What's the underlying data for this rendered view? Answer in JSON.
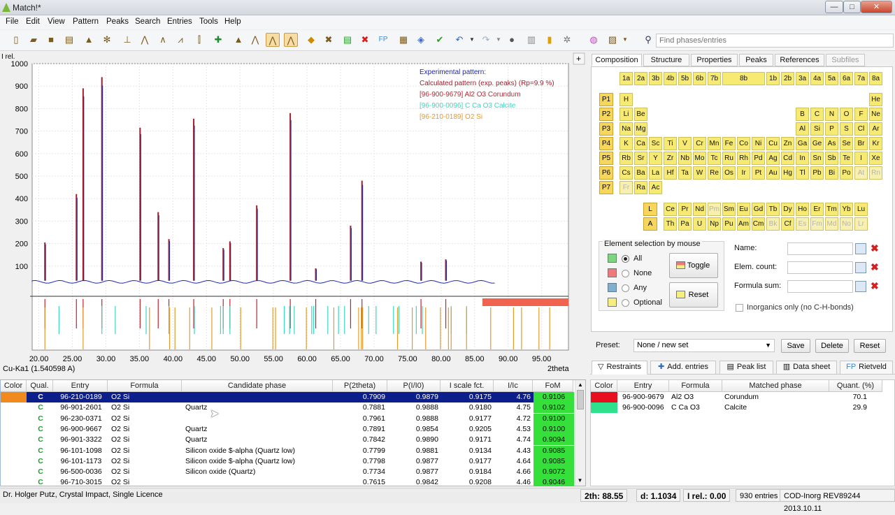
{
  "window": {
    "title": "Match!*",
    "minimize": "—",
    "maximize": "□",
    "close": "✕"
  },
  "menu": [
    "File",
    "Edit",
    "View",
    "Pattern",
    "Peaks",
    "Search",
    "Entries",
    "Tools",
    "Help"
  ],
  "search": {
    "placeholder": "Find phases/entries"
  },
  "plot": {
    "y_axis_label": "I rel.",
    "y_ticks": [
      "1000",
      "900",
      "800",
      "700",
      "600",
      "500",
      "400",
      "300",
      "200",
      "100"
    ],
    "x_ticks": [
      "20.00",
      "25.00",
      "30.00",
      "35.00",
      "40.00",
      "45.00",
      "50.00",
      "55.00",
      "60.00",
      "65.00",
      "70.00",
      "75.00",
      "80.00",
      "85.00",
      "90.00",
      "95.00"
    ],
    "x_axis_label": "2theta",
    "wavelength": "Cu-Ka1 (1.540598 A)",
    "legend": [
      {
        "text": "Experimental pattern:",
        "color": "#1f2aa8"
      },
      {
        "text": "Calculated pattern (exp. peaks) (Rp=9.9 %)",
        "color": "#a31d2c"
      },
      {
        "text": "[96-900-9679] Al2 O3  Corundum",
        "color": "#c8202e"
      },
      {
        "text": "[96-900-0096] C Ca O3  Calcite",
        "color": "#39d7c2"
      },
      {
        "text": "[96-210-0189] O2 Si",
        "color": "#e69a2a"
      }
    ]
  },
  "chart_data": {
    "type": "line",
    "x_range": [
      19,
      99
    ],
    "y_range": [
      0,
      1000
    ],
    "xlabel": "2theta",
    "ylabel": "I rel.",
    "peaks_experimental": [
      [
        20.9,
        205
      ],
      [
        25.6,
        420
      ],
      [
        26.6,
        890
      ],
      [
        29.4,
        940
      ],
      [
        35.1,
        715
      ],
      [
        37.8,
        340
      ],
      [
        39.4,
        220
      ],
      [
        43.1,
        755
      ],
      [
        47.5,
        180
      ],
      [
        48.5,
        210
      ],
      [
        52.5,
        370
      ],
      [
        57.5,
        780
      ],
      [
        61.3,
        90
      ],
      [
        66.5,
        280
      ],
      [
        68.2,
        480
      ],
      [
        77.0,
        120
      ],
      [
        80.7,
        130
      ]
    ],
    "series": [
      {
        "name": "Experimental pattern:",
        "color": "#1f2aa8"
      },
      {
        "name": "Calculated pattern (exp. peaks) (Rp=9.9 %)",
        "color": "#a31d2c"
      }
    ]
  },
  "tabs_right": [
    "Composition",
    "Structure",
    "Properties",
    "Peaks",
    "References",
    "Subfiles"
  ],
  "groups_row": [
    "1a",
    "2a",
    "3b",
    "4b",
    "5b",
    "6b",
    "7b",
    "8b",
    "1b",
    "2b",
    "3a",
    "4a",
    "5a",
    "6a",
    "7a",
    "8a"
  ],
  "periods": [
    "P1",
    "P2",
    "P3",
    "P4",
    "P5",
    "P6",
    "P7"
  ],
  "elements": {
    "p1": [
      "H",
      "He"
    ],
    "p2": [
      "Li",
      "Be",
      "B",
      "C",
      "N",
      "O",
      "F",
      "Ne"
    ],
    "p3": [
      "Na",
      "Mg",
      "Al",
      "Si",
      "P",
      "S",
      "Cl",
      "Ar"
    ],
    "p4": [
      "K",
      "Ca",
      "Sc",
      "Ti",
      "V",
      "Cr",
      "Mn",
      "Fe",
      "Co",
      "Ni",
      "Cu",
      "Zn",
      "Ga",
      "Ge",
      "As",
      "Se",
      "Br",
      "Kr"
    ],
    "p5": [
      "Rb",
      "Sr",
      "Y",
      "Zr",
      "Nb",
      "Mo",
      "Tc",
      "Ru",
      "Rh",
      "Pd",
      "Ag",
      "Cd",
      "In",
      "Sn",
      "Sb",
      "Te",
      "I",
      "Xe"
    ],
    "p6": [
      "Cs",
      "Ba",
      "La",
      "Hf",
      "Ta",
      "W",
      "Re",
      "Os",
      "Ir",
      "Pt",
      "Au",
      "Hg",
      "Tl",
      "Pb",
      "Bi",
      "Po",
      "At",
      "Rn"
    ],
    "p7": [
      "Fr",
      "Ra",
      "Ac"
    ],
    "lanth": [
      "Ce",
      "Pr",
      "Nd",
      "Pm",
      "Sm",
      "Eu",
      "Gd",
      "Tb",
      "Dy",
      "Ho",
      "Er",
      "Tm",
      "Yb",
      "Lu"
    ],
    "actin": [
      "Th",
      "Pa",
      "U",
      "Np",
      "Pu",
      "Am",
      "Cm",
      "Bk",
      "Cf",
      "Es",
      "Fm",
      "Md",
      "No",
      "Lr"
    ]
  },
  "series_buttons": [
    "L",
    "A"
  ],
  "elem_selection": {
    "title": "Element selection by mouse",
    "options": [
      "All",
      "None",
      "Any",
      "Optional"
    ],
    "toggle": "Toggle",
    "reset": "Reset"
  },
  "filters": {
    "name": "Name:",
    "elem_count": "Elem. count:",
    "formula_sum": "Formula sum:",
    "inorganics": "Inorganics only (no C-H-bonds)"
  },
  "preset": {
    "label": "Preset:",
    "value": "None / new set",
    "save": "Save",
    "delete": "Delete",
    "reset": "Reset"
  },
  "bottom_tabs": [
    "Restraints",
    "Add. entries",
    "Peak list",
    "Data sheet",
    "Rietveld"
  ],
  "candidates": {
    "headers": [
      "Color",
      "Qual.",
      "Entry",
      "Formula",
      "Candidate phase",
      "P(2theta)",
      "P(I/I0)",
      "I scale fct.",
      "I/Ic",
      "FoM"
    ],
    "rows": [
      [
        "C",
        "96-210-0189",
        "O2 Si",
        "",
        "0.7909",
        "0.9879",
        "0.9175",
        "4.76",
        "0.9106"
      ],
      [
        "C",
        "96-901-2601",
        "O2 Si",
        "Quartz",
        "0.7881",
        "0.9888",
        "0.9180",
        "4.75",
        "0.9102"
      ],
      [
        "C",
        "96-230-0371",
        "O2 Si",
        "",
        "0.7961",
        "0.9888",
        "0.9177",
        "4.72",
        "0.9100"
      ],
      [
        "C",
        "96-900-9667",
        "O2 Si",
        "Quartz",
        "0.7891",
        "0.9854",
        "0.9205",
        "4.53",
        "0.9100"
      ],
      [
        "C",
        "96-901-3322",
        "O2 Si",
        "Quartz",
        "0.7842",
        "0.9890",
        "0.9171",
        "4.74",
        "0.9094"
      ],
      [
        "C",
        "96-101-1098",
        "O2 Si",
        "Silicon oxide $-alpha (Quartz low)",
        "0.7799",
        "0.9881",
        "0.9134",
        "4.43",
        "0.9085"
      ],
      [
        "C",
        "96-101-1173",
        "O2 Si",
        "Silicon oxide $-alpha (Quartz low)",
        "0.7798",
        "0.9877",
        "0.9177",
        "4.64",
        "0.9085"
      ],
      [
        "C",
        "96-500-0036",
        "O2 Si",
        "Silicon oxide (Quartz)",
        "0.7734",
        "0.9877",
        "0.9184",
        "4.66",
        "0.9072"
      ],
      [
        "C",
        "96-710-3015",
        "O2 Si",
        "",
        "0.7615",
        "0.9842",
        "0.9208",
        "4.46",
        "0.9046"
      ]
    ]
  },
  "matched": {
    "headers": [
      "Color",
      "Entry",
      "Formula",
      "Matched phase",
      "Quant. (%)"
    ],
    "rows": [
      {
        "color": "#e8101e",
        "entry": "96-900-9679",
        "formula": "Al2 O3",
        "phase": "Corundum",
        "quant": "70.1"
      },
      {
        "color": "#2fe08c",
        "entry": "96-900-0096",
        "formula": "C Ca O3",
        "phase": "Calcite",
        "quant": "29.9"
      }
    ]
  },
  "status": {
    "license": "Dr. Holger Putz, Crystal Impact, Single Licence",
    "twotheta": "2th:  88.55",
    "d": "d: 1.1034",
    "irel": "I rel.: 0.00",
    "entries": "930 entries",
    "db": "COD-Inorg REV89244 2013.10.11"
  }
}
